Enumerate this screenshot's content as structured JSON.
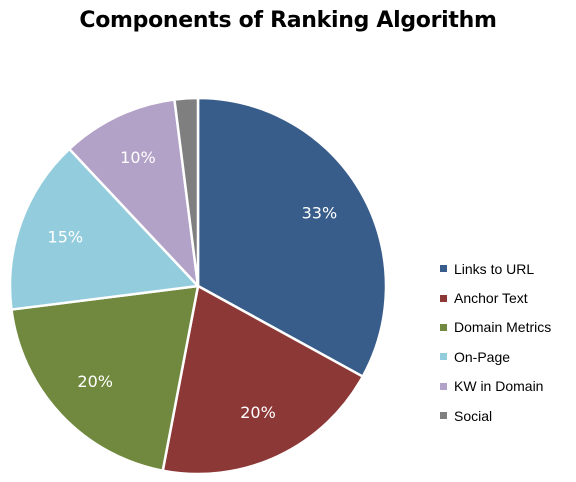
{
  "chart_data": {
    "type": "pie",
    "title": "Components of Ranking Algorithm",
    "categories": [
      "Links to URL",
      "Anchor Text",
      "Domain Metrics",
      "On-Page",
      "KW in Domain",
      "Social"
    ],
    "values": [
      33,
      20,
      20,
      15,
      10,
      2
    ],
    "data_labels": [
      "33%",
      "20%",
      "20%",
      "15%",
      "10%",
      ""
    ],
    "colors": [
      "#385d8a",
      "#8c3836",
      "#71893f",
      "#93cddd",
      "#b3a2c7",
      "#7f7f7f"
    ],
    "label_color": "#ffffff",
    "legend_position": "right"
  }
}
